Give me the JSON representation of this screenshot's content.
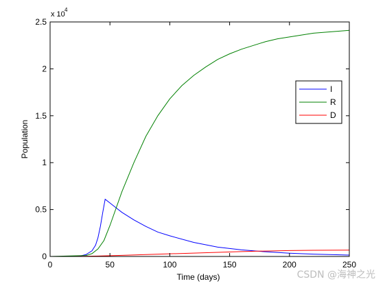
{
  "watermark": "CSDN @海神之光",
  "chart_data": {
    "type": "line",
    "title": "",
    "xlabel": "Time (days)",
    "ylabel": "Population",
    "y_multiplier_label": "x 10",
    "y_multiplier_exponent": "4",
    "xlim": [
      0,
      250
    ],
    "ylim": [
      0,
      2.5
    ],
    "xticks": [
      0,
      50,
      100,
      150,
      200,
      250
    ],
    "yticks": [
      0,
      0.5,
      1,
      1.5,
      2,
      2.5
    ],
    "xtick_labels": [
      "0",
      "50",
      "100",
      "150",
      "200",
      "250"
    ],
    "ytick_labels": [
      "0",
      "0.5",
      "1",
      "1.5",
      "2",
      "2.5"
    ],
    "grid": false,
    "legend_position": "right",
    "series": [
      {
        "name": "I",
        "color": "#0000ff",
        "x": [
          0,
          20,
          25,
          30,
          35,
          38,
          40,
          42,
          44,
          46,
          50,
          55,
          60,
          70,
          80,
          90,
          100,
          120,
          140,
          160,
          180,
          200,
          220,
          250
        ],
        "y": [
          0,
          0,
          0.005,
          0.02,
          0.06,
          0.12,
          0.2,
          0.32,
          0.47,
          0.61,
          0.57,
          0.52,
          0.47,
          0.39,
          0.32,
          0.26,
          0.22,
          0.15,
          0.1,
          0.07,
          0.05,
          0.035,
          0.025,
          0.015
        ]
      },
      {
        "name": "R",
        "color": "#008000",
        "x": [
          0,
          30,
          35,
          40,
          45,
          50,
          55,
          60,
          70,
          80,
          90,
          100,
          110,
          120,
          130,
          140,
          150,
          160,
          170,
          180,
          190,
          200,
          210,
          220,
          230,
          240,
          250
        ],
        "y": [
          0,
          0.01,
          0.03,
          0.08,
          0.17,
          0.33,
          0.51,
          0.69,
          1.0,
          1.28,
          1.5,
          1.68,
          1.82,
          1.93,
          2.02,
          2.1,
          2.16,
          2.21,
          2.25,
          2.29,
          2.32,
          2.34,
          2.36,
          2.38,
          2.39,
          2.4,
          2.41
        ]
      },
      {
        "name": "D",
        "color": "#ff0000",
        "x": [
          0,
          20,
          40,
          60,
          80,
          100,
          120,
          140,
          160,
          180,
          200,
          220,
          250
        ],
        "y": [
          0,
          0,
          0.005,
          0.012,
          0.02,
          0.028,
          0.036,
          0.044,
          0.052,
          0.058,
          0.063,
          0.066,
          0.068
        ]
      }
    ]
  }
}
